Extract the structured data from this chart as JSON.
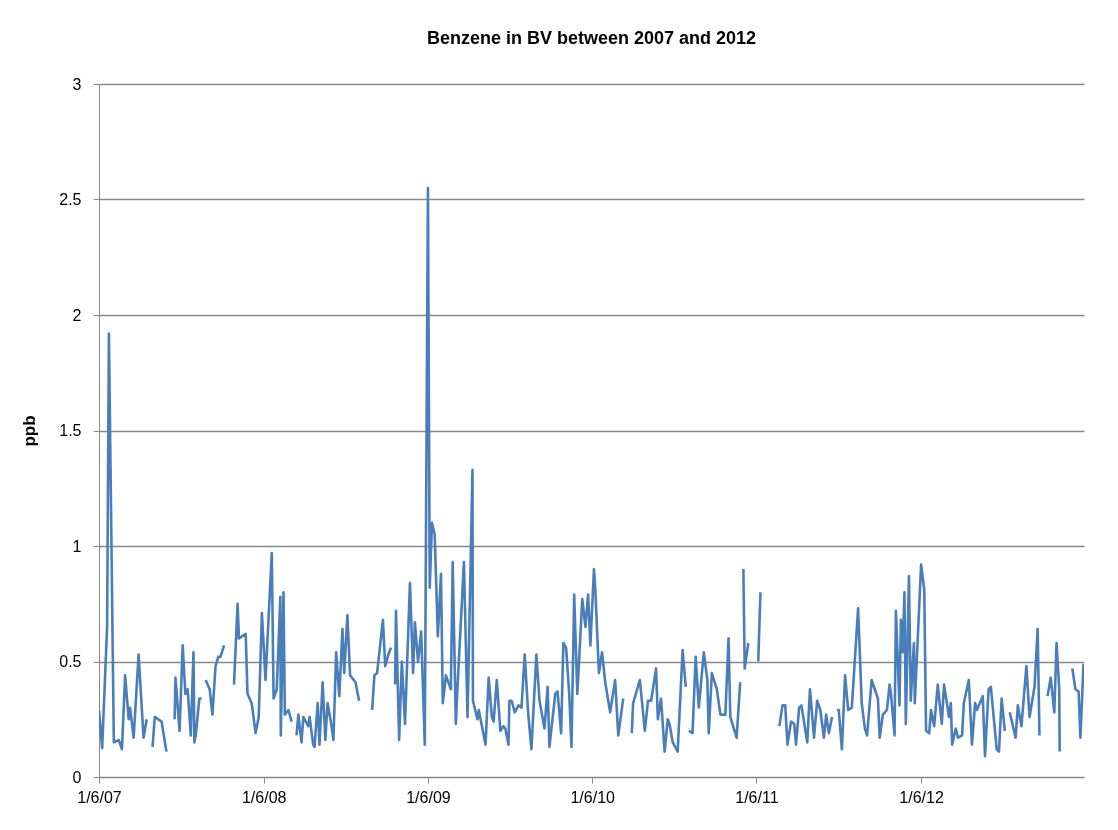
{
  "chart_data": {
    "type": "line",
    "title": "Benzene in BV between 2007 and 2012",
    "ylabel": "ppb",
    "xlim": [
      "2007-06-01",
      "2013-05-29"
    ],
    "ylim": [
      0,
      3
    ],
    "xticks": [
      {
        "value": "2007-06-01",
        "label": "1/6/07"
      },
      {
        "value": "2008-06-01",
        "label": "1/6/08"
      },
      {
        "value": "2009-06-01",
        "label": "1/6/09"
      },
      {
        "value": "2010-06-01",
        "label": "1/6/10"
      },
      {
        "value": "2011-06-01",
        "label": "1/6/11"
      },
      {
        "value": "2012-06-01",
        "label": "1/6/12"
      }
    ],
    "yticks": [
      0,
      0.5,
      1,
      1.5,
      2,
      2.5,
      3
    ],
    "grid": "y",
    "marker": "none",
    "line_style": "solid",
    "series": [
      {
        "color": "#4a7ebb",
        "x": [
          "2007-06-01",
          "2007-06-08",
          "2007-06-19",
          "2007-06-23",
          "2007-07-04",
          "2007-07-15",
          "2007-07-22",
          "2007-07-29",
          "2007-08-06",
          "2007-08-09",
          "2007-08-17",
          "2007-08-28",
          "2007-09-08",
          "2007-09-15",
          "2007-09-22",
          "2007-09-28",
          "2007-10-03",
          "2007-10-18",
          "2007-10-29",
          "2007-11-09",
          "2007-11-16",
          "2007-11-18",
          "2007-11-27",
          "2007-12-04",
          "2007-12-10",
          "2007-12-15",
          "2007-12-22",
          "2007-12-28",
          "2007-12-30",
          "2008-01-02",
          "2008-01-10",
          "2008-01-15",
          "2008-01-21",
          "2008-01-24",
          "2008-02-02",
          "2008-02-08",
          "2008-02-15",
          "2008-02-21",
          "2008-02-26",
          "2008-03-05",
          "2008-03-16",
          "2008-03-27",
          "2008-04-04",
          "2008-04-07",
          "2008-04-22",
          "2008-04-26",
          "2008-05-05",
          "2008-05-06",
          "2008-05-14",
          "2008-05-21",
          "2008-05-28",
          "2008-06-05",
          "2008-06-19",
          "2008-06-23",
          "2008-06-30",
          "2008-07-08",
          "2008-07-09",
          "2008-07-15",
          "2008-07-18",
          "2008-07-26",
          "2008-08-02",
          "2008-08-08",
          "2008-08-13",
          "2008-08-17",
          "2008-08-24",
          "2008-08-28",
          "2008-09-08",
          "2008-09-11",
          "2008-09-19",
          "2008-09-22",
          "2008-09-29",
          "2008-10-03",
          "2008-10-10",
          "2008-10-16",
          "2008-10-21",
          "2008-10-29",
          "2008-11-03",
          "2008-11-09",
          "2008-11-16",
          "2008-11-23",
          "2008-11-27",
          "2008-12-04",
          "2008-12-10",
          "2008-12-22",
          "2008-12-30",
          "2009-01-13",
          "2009-01-28",
          "2009-02-02",
          "2009-02-08",
          "2009-02-21",
          "2009-02-26",
          "2009-03-05",
          "2009-03-11",
          "2009-03-16",
          "2009-03-20",
          "2009-03-22",
          "2009-03-29",
          "2009-04-04",
          "2009-04-11",
          "2009-04-22",
          "2009-04-29",
          "2009-05-03",
          "2009-05-10",
          "2009-05-17",
          "2009-05-25",
          "2009-06-01",
          "2009-06-05",
          "2009-06-10",
          "2009-06-16",
          "2009-06-23",
          "2009-06-30",
          "2009-07-04",
          "2009-07-11",
          "2009-07-22",
          "2009-07-26",
          "2009-08-02",
          "2009-08-06",
          "2009-08-20",
          "2009-08-28",
          "2009-09-08",
          "2009-09-09",
          "2009-09-19",
          "2009-09-22",
          "2009-10-07",
          "2009-10-14",
          "2009-10-21",
          "2009-10-25",
          "2009-11-01",
          "2009-11-09",
          "2009-11-16",
          "2009-11-20",
          "2009-11-27",
          "2009-11-29",
          "2009-12-04",
          "2009-12-11",
          "2009-12-19",
          "2009-12-26",
          "2010-01-02",
          "2010-01-10",
          "2010-01-17",
          "2010-01-28",
          "2010-02-04",
          "2010-02-15",
          "2010-02-22",
          "2010-02-26",
          "2010-03-11",
          "2010-03-16",
          "2010-03-24",
          "2010-03-29",
          "2010-04-04",
          "2010-04-11",
          "2010-04-16",
          "2010-04-22",
          "2010-04-29",
          "2010-05-10",
          "2010-05-17",
          "2010-05-23",
          "2010-05-28",
          "2010-06-05",
          "2010-06-08",
          "2010-06-16",
          "2010-06-23",
          "2010-06-30",
          "2010-07-11",
          "2010-07-22",
          "2010-07-29",
          "2010-08-09",
          "2010-08-18",
          "2010-08-28",
          "2010-08-31",
          "2010-09-15",
          "2010-09-26",
          "2010-10-03",
          "2010-10-10",
          "2010-10-21",
          "2010-10-25",
          "2010-11-01",
          "2010-11-09",
          "2010-11-16",
          "2010-11-20",
          "2010-11-27",
          "2010-12-08",
          "2010-12-19",
          "2010-12-26",
          "2010-12-30",
          "2011-01-02",
          "2011-01-10",
          "2011-01-17",
          "2011-01-24",
          "2011-02-04",
          "2011-02-12",
          "2011-02-15",
          "2011-02-22",
          "2011-03-05",
          "2011-03-13",
          "2011-03-24",
          "2011-03-31",
          "2011-04-04",
          "2011-04-18",
          "2011-04-26",
          "2011-04-29",
          "2011-05-03",
          "2011-05-06",
          "2011-05-14",
          "2011-05-25",
          "2011-06-05",
          "2011-06-10",
          "2011-06-30",
          "2011-07-22",
          "2011-07-29",
          "2011-08-04",
          "2011-08-09",
          "2011-08-17",
          "2011-08-24",
          "2011-08-28",
          "2011-09-04",
          "2011-09-09",
          "2011-09-22",
          "2011-09-28",
          "2011-10-07",
          "2011-10-14",
          "2011-10-21",
          "2011-10-29",
          "2011-11-03",
          "2011-11-09",
          "2011-11-16",
          "2011-11-21",
          "2011-11-27",
          "2011-12-01",
          "2011-12-08",
          "2011-12-15",
          "2011-12-22",
          "2011-12-30",
          "2012-01-13",
          "2012-01-21",
          "2012-01-28",
          "2012-02-02",
          "2012-02-12",
          "2012-02-26",
          "2012-03-01",
          "2012-03-08",
          "2012-03-17",
          "2012-03-23",
          "2012-03-26",
          "2012-04-03",
          "2012-04-06",
          "2012-04-14",
          "2012-04-17",
          "2012-04-21",
          "2012-04-25",
          "2012-04-28",
          "2012-05-05",
          "2012-05-09",
          "2012-05-16",
          "2012-05-18",
          "2012-06-01",
          "2012-06-08",
          "2012-06-12",
          "2012-06-19",
          "2012-06-23",
          "2012-06-30",
          "2012-07-08",
          "2012-07-17",
          "2012-07-22",
          "2012-08-02",
          "2012-08-06",
          "2012-08-09",
          "2012-08-17",
          "2012-08-22",
          "2012-08-31",
          "2012-09-04",
          "2012-09-15",
          "2012-09-22",
          "2012-09-29",
          "2012-10-03",
          "2012-10-16",
          "2012-10-21",
          "2012-10-29",
          "2012-11-03",
          "2012-11-16",
          "2012-11-21",
          "2012-11-27",
          "2012-12-04",
          "2012-12-10",
          "2012-12-15",
          "2012-12-28",
          "2013-01-02",
          "2013-01-10",
          "2013-01-21",
          "2013-01-28",
          "2013-02-08",
          "2013-02-15",
          "2013-02-19",
          "2013-02-28",
          "2013-03-09",
          "2013-03-16",
          "2013-03-24",
          "2013-03-29",
          "2013-04-04",
          "2013-04-05",
          "2013-04-18",
          "2013-05-03",
          "2013-05-10",
          "2013-05-17",
          "2013-05-21",
          "2013-05-28"
        ],
        "values": [
          0.29,
          0.125,
          0.65,
          1.92,
          0.15,
          0.16,
          0.12,
          0.44,
          0.25,
          0.3,
          0.17,
          0.53,
          0.17,
          0.25,
          null,
          0.13,
          0.26,
          0.24,
          0.11,
          null,
          0.25,
          0.43,
          0.2,
          0.57,
          0.36,
          0.38,
          0.18,
          0.54,
          0.15,
          0.18,
          0.34,
          0.34,
          null,
          0.42,
          0.38,
          0.27,
          0.48,
          0.52,
          0.52,
          0.57,
          null,
          0.4,
          0.75,
          0.6,
          0.62,
          0.36,
          0.32,
          0.31,
          0.19,
          0.26,
          0.71,
          0.42,
          0.97,
          0.34,
          0.38,
          0.78,
          0.18,
          0.8,
          0.27,
          0.29,
          0.24,
          null,
          0.18,
          0.27,
          0.15,
          0.26,
          0.22,
          0.26,
          0.14,
          0.13,
          0.32,
          0.14,
          0.41,
          0.16,
          0.32,
          0.23,
          0.16,
          0.54,
          0.35,
          0.64,
          0.45,
          0.7,
          0.44,
          0.41,
          0.33,
          null,
          0.29,
          0.44,
          0.45,
          0.68,
          0.48,
          0.53,
          0.56,
          null,
          0.4,
          0.72,
          0.16,
          0.5,
          0.23,
          0.84,
          0.45,
          0.67,
          0.5,
          0.63,
          0.14,
          2.55,
          0.82,
          1.1,
          1.05,
          0.61,
          0.88,
          0.32,
          0.44,
          0.38,
          0.93,
          0.23,
          0.4,
          0.93,
          0.26,
          1.33,
          0.33,
          0.25,
          0.29,
          0.14,
          0.43,
          0.26,
          0.24,
          0.42,
          0.2,
          0.22,
          0.21,
          0.14,
          0.33,
          0.33,
          0.28,
          0.31,
          0.3,
          0.53,
          0.27,
          0.12,
          0.53,
          0.33,
          0.21,
          0.39,
          0.13,
          0.36,
          0.37,
          0.19,
          0.58,
          0.56,
          0.36,
          0.13,
          0.79,
          0.36,
          0.77,
          0.65,
          0.79,
          0.57,
          0.9,
          0.81,
          0.45,
          0.54,
          0.41,
          0.28,
          0.42,
          0.18,
          0.34,
          null,
          0.19,
          0.32,
          0.42,
          0.2,
          0.33,
          0.33,
          0.47,
          0.25,
          0.34,
          0.11,
          0.25,
          0.23,
          0.15,
          0.11,
          0.55,
          0.39,
          null,
          0.2,
          0.19,
          0.52,
          0.3,
          0.54,
          0.42,
          0.19,
          0.45,
          0.38,
          0.27,
          0.27,
          0.6,
          0.26,
          0.17,
          0.41,
          null,
          0.9,
          0.47,
          0.58,
          null,
          0.5,
          0.8,
          null,
          0.22,
          0.31,
          0.31,
          0.14,
          0.24,
          0.23,
          0.14,
          0.3,
          0.31,
          0.15,
          0.38,
          0.17,
          0.33,
          0.29,
          0.17,
          0.27,
          0.19,
          0.26,
          null,
          0.29,
          0.29,
          0.12,
          0.44,
          0.29,
          0.3,
          0.73,
          0.32,
          0.21,
          0.18,
          0.42,
          0.34,
          0.17,
          0.27,
          0.29,
          0.4,
          0.36,
          0.18,
          0.72,
          0.31,
          0.68,
          0.54,
          0.8,
          0.23,
          0.87,
          0.33,
          0.58,
          0.32,
          0.92,
          0.81,
          0.2,
          0.19,
          0.29,
          0.22,
          0.4,
          0.23,
          0.4,
          0.26,
          0.32,
          0.14,
          0.21,
          0.17,
          0.18,
          0.32,
          0.42,
          0.14,
          0.32,
          0.29,
          0.35,
          0.09,
          0.38,
          0.39,
          0.12,
          0.11,
          0.34,
          0.2,
          null,
          0.28,
          0.17,
          0.31,
          0.22,
          0.48,
          0.26,
          0.39,
          0.64,
          0.18,
          null,
          0.35,
          0.43,
          0.28,
          0.58,
          0.38,
          0.11,
          null,
          0.47,
          0.38,
          0.37,
          0.17,
          0.49
        ]
      }
    ]
  }
}
